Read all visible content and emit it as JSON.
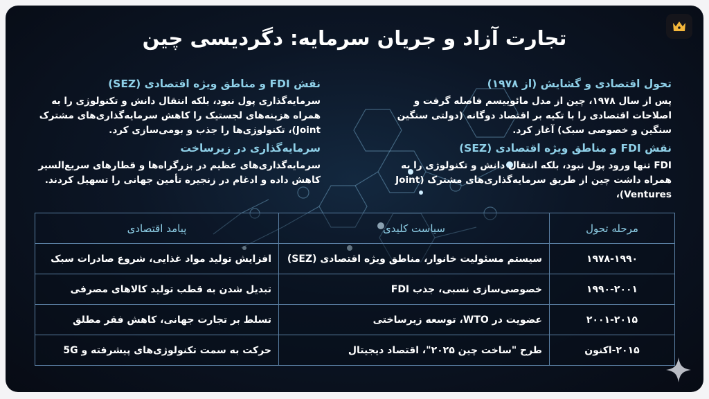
{
  "title": "تجارت آزاد و جریان سرمایه: دگردیسی چین",
  "right_column": [
    {
      "heading": "تحول اقتصادی و گشایش (از ۱۹۷۸)",
      "body": "پس از سال ۱۹۷۸، چین از مدل مائوییسم فاصله گرفت و اصلاحات اقتصادی را با تکیه بر اقتصاد دوگانه (دولتی سنگین سنگین و خصوصی سبک) آغاز کرد."
    },
    {
      "heading": "نقش FDI و مناطق ویژه اقتصادی (SEZ)",
      "body": "FDI تنها ورود پول نبود، بلکه انتقال دانش و تکنولوژی را به همراه داشت چین از طریق سرمایه‌گذاری‌های مشترک (Joint Ventures)،"
    }
  ],
  "left_column": [
    {
      "heading": "نقش FDI و مناطق ویژه اقتصادی (SEZ)",
      "body": "سرمایه‌گذاری پول نبود، بلکه انتقال دانش و تکنولوژی را به همراه هزینه‌های لجستیک را کاهش سرمایه‌گذاری‌های مشترک Joint)، تکنولوژی‌ها را جذب و بومی‌سازی کرد."
    },
    {
      "heading": "سرمایه‌گذاری در زیرساخت",
      "body": "سرمایه‌گذاری‌های عظیم در بزرگراه‌ها و قطارهای سریع‌السیر کاهش داده و ادغام در زنجیره تأمین جهانی را تسهیل کردند."
    }
  ],
  "table": {
    "headers": [
      "مرحله تحول",
      "سیاست کلیدی",
      "پیامد اقتصادی"
    ],
    "rows": [
      [
        "۱۹۷۸-۱۹۹۰",
        "سیستم مسئولیت خانوار، مناطق ویژه اقتصادی (SEZ)",
        "افزایش تولید مواد غذایی، شروع صادرات سبک"
      ],
      [
        "۱۹۹۰-۲۰۰۱",
        "خصوصی‌سازی نسبی، جذب FDI",
        "تبدیل شدن به قطب تولید کالاهای مصرفی"
      ],
      [
        "۲۰۰۱-۲۰۱۵",
        "عضویت در WTO، توسعه زیرساختی",
        "تسلط بر تجارت جهانی، کاهش فقر مطلق"
      ],
      [
        "۲۰۱۵-اکنون",
        "طرح \"ساخت چین ۲۰۲۵\"، اقتصاد دیجیتال",
        "حرکت به سمت تکنولوژی‌های پیشرفته و 5G"
      ]
    ]
  },
  "icons": {
    "top_right": "crown-icon",
    "bottom_right": "sparkle-icon"
  },
  "colors": {
    "heading": "#8fd0e8",
    "background": "#0c1626",
    "table_border": "#5a7fa3",
    "crown": "#f5b73b"
  }
}
